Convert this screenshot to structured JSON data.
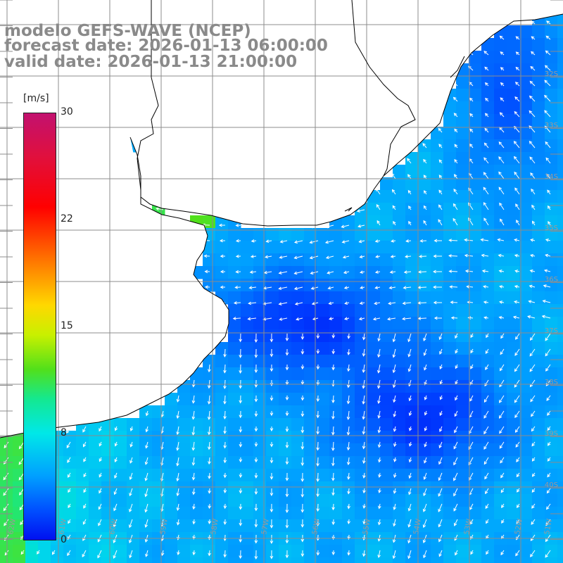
{
  "title": {
    "line1": "modelo GEFS-WAVE (NCEP)",
    "line2": "forecast date: 2026-01-13 06:00:00",
    "line3": "valid date: 2026-01-13 21:00:00"
  },
  "colorbar": {
    "unit": "[m/s]",
    "min": 0,
    "max": 30,
    "ticks": [
      "30",
      "22",
      "15",
      "8",
      "0"
    ],
    "colors": [
      "#c2116f",
      "#ff0000",
      "#ff7a00",
      "#ffd800",
      "#52e01a",
      "#00e8e8",
      "#00a0ff",
      "#0010f0"
    ]
  },
  "lat_labels": [
    "32S",
    "33S",
    "34S",
    "35S",
    "36S",
    "37S",
    "38S",
    "39S",
    "40S"
  ],
  "lon_labels": [
    "62W",
    "61W",
    "60W",
    "59W",
    "58W",
    "57W",
    "56W",
    "55W",
    "54W",
    "53W",
    "52W",
    "51W"
  ],
  "colors": {
    "land": "#ffffff",
    "grid": "#8c8c8c",
    "coast": "#000000",
    "arrows": "#ffffff",
    "title": "#8a8a8a"
  }
}
